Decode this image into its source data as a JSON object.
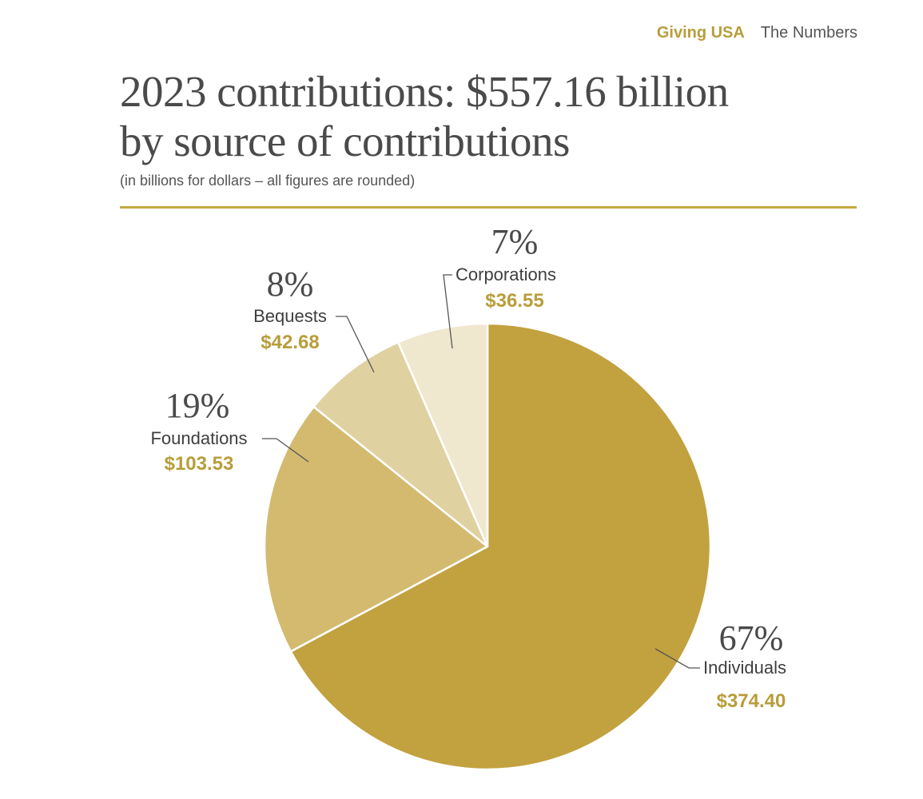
{
  "header": {
    "brand": "Giving USA",
    "section": "The Numbers"
  },
  "chart_data": {
    "type": "pie",
    "title_line1": "2023 contributions: $557.16 billion",
    "title_line2": "by source of contributions",
    "subtitle": "(in billions for dollars – all figures are rounded)",
    "slices": [
      {
        "label": "Individuals",
        "value": 374.4,
        "value_text": "$374.40",
        "percent_text": "67%",
        "color": "#c2a13f"
      },
      {
        "label": "Foundations",
        "value": 103.53,
        "value_text": "$103.53",
        "percent_text": "19%",
        "color": "#d4ba6f"
      },
      {
        "label": "Bequests",
        "value": 42.68,
        "value_text": "$42.68",
        "percent_text": "8%",
        "color": "#e0d1a0"
      },
      {
        "label": "Corporations",
        "value": 36.55,
        "value_text": "$36.55",
        "percent_text": "7%",
        "color": "#f0e7cf"
      }
    ]
  }
}
